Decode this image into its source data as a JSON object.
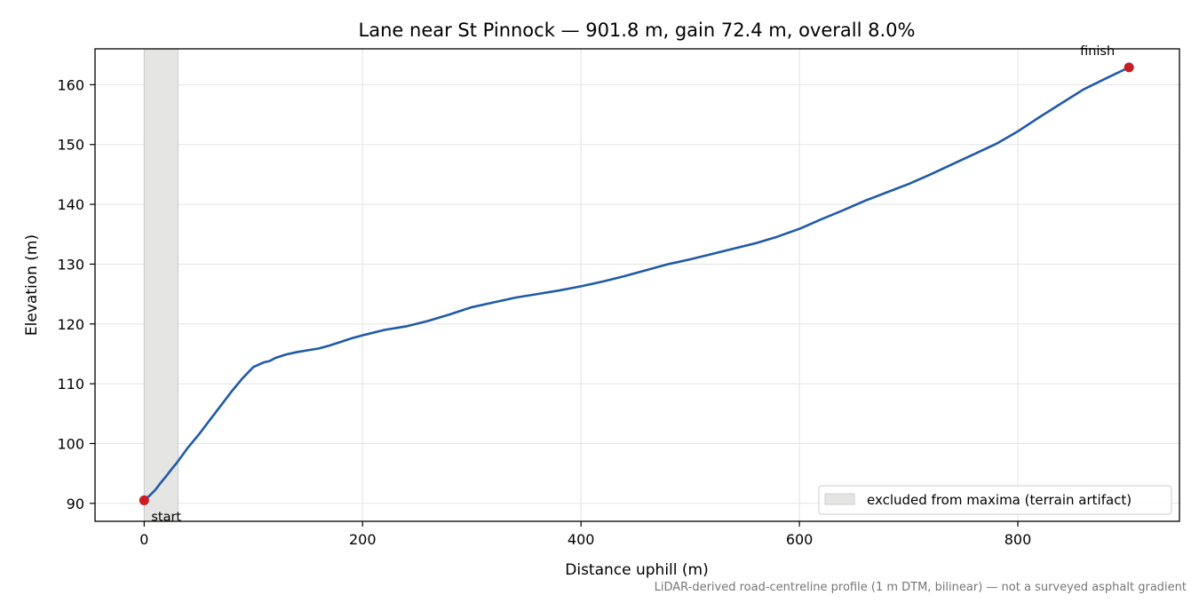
{
  "chart_data": {
    "type": "line",
    "title": "Lane near St Pinnock — 901.8 m, gain 72.4 m, overall 8.0%",
    "xlabel": "Distance uphill (m)",
    "ylabel": "Elevation (m)",
    "xlim": [
      -45,
      948
    ],
    "ylim": [
      87,
      166
    ],
    "xticks": [
      0,
      200,
      400,
      600,
      800
    ],
    "yticks": [
      90,
      100,
      110,
      120,
      130,
      140,
      150,
      160
    ],
    "grid": true,
    "footnote": "LiDAR-derived road-centreline profile (1 m DTM, bilinear) — not a surveyed asphalt gradient",
    "excluded_region": {
      "x": [
        0,
        31
      ],
      "label": "excluded from maxima (terrain artifact)",
      "color": "#e5e5e4"
    },
    "legend_position": "lower-right",
    "series": [
      {
        "color": "#1f5aa8",
        "x": [
          0,
          5,
          10,
          15,
          20,
          25,
          30,
          40,
          50,
          60,
          70,
          80,
          90,
          100,
          110,
          115,
          120,
          125,
          130,
          140,
          150,
          160,
          170,
          180,
          190,
          200,
          220,
          240,
          260,
          280,
          300,
          320,
          340,
          360,
          380,
          400,
          420,
          440,
          460,
          480,
          500,
          520,
          540,
          560,
          580,
          600,
          620,
          640,
          660,
          680,
          700,
          720,
          740,
          760,
          780,
          800,
          820,
          840,
          860,
          880,
          901.8
        ],
        "y": [
          90.5,
          91.3,
          92.2,
          93.4,
          94.5,
          95.7,
          96.8,
          99.3,
          101.5,
          103.9,
          106.3,
          108.7,
          110.9,
          112.8,
          113.6,
          113.8,
          114.3,
          114.6,
          114.9,
          115.3,
          115.6,
          115.9,
          116.4,
          117.0,
          117.6,
          118.1,
          119.0,
          119.6,
          120.5,
          121.6,
          122.8,
          123.6,
          124.4,
          125.0,
          125.6,
          126.3,
          127.1,
          128.0,
          129.0,
          130.0,
          130.8,
          131.7,
          132.6,
          133.5,
          134.6,
          135.9,
          137.5,
          139.0,
          140.6,
          142.0,
          143.4,
          145.0,
          146.7,
          148.4,
          150.1,
          152.2,
          154.6,
          156.9,
          159.2,
          161.0,
          162.9
        ]
      }
    ],
    "markers": [
      {
        "x": 0,
        "y": 90.5,
        "label": "start",
        "color": "#c81d25"
      },
      {
        "x": 901.8,
        "y": 162.9,
        "label": "finish",
        "color": "#c81d25"
      }
    ]
  }
}
